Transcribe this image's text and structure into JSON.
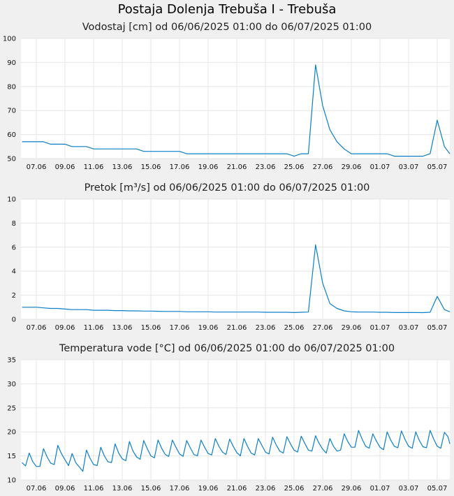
{
  "page": {
    "title": "Postaja Dolenja Trebuša I - Trebuša"
  },
  "chart_data": [
    {
      "type": "line",
      "title": "Vodostaj [cm] od 06/06/2025 01:00 do 06/07/2025 01:00",
      "xlabel": "",
      "ylabel": "",
      "x_tick_labels": [
        "07.06",
        "09.06",
        "11.06",
        "13.06",
        "15.06",
        "17.06",
        "19.06",
        "21.06",
        "23.06",
        "25.06",
        "27.06",
        "29.06",
        "01.07",
        "03.07",
        "05.07"
      ],
      "y_ticks": [
        50,
        60,
        70,
        80,
        90,
        100
      ],
      "ylim": [
        50,
        100
      ],
      "grid": true,
      "color": "#0a7fc9",
      "series": [
        {
          "x_days": [
            0,
            0.5,
            1,
            1.5,
            2,
            2.5,
            3,
            3.5,
            4,
            4.5,
            5,
            5.5,
            6,
            6.5,
            7,
            7.5,
            8,
            8.5,
            9,
            9.5,
            10,
            10.5,
            11,
            11.5,
            12,
            12.5,
            13,
            13.5,
            14,
            14.5,
            15,
            15.5,
            16,
            16.5,
            17,
            17.5,
            18,
            18.5,
            19,
            19.5,
            20,
            20.5,
            21,
            21.5,
            22,
            22.5,
            23,
            23.5,
            24,
            24.5,
            25,
            25.5,
            26,
            26.5,
            27,
            27.5,
            28,
            28.5,
            29,
            29.5,
            30
          ],
          "values": [
            57,
            57,
            57,
            57,
            56,
            56,
            56,
            55,
            55,
            55,
            54,
            54,
            54,
            54,
            54,
            54,
            54,
            53,
            53,
            53,
            53,
            53,
            53,
            52,
            52,
            52,
            52,
            52,
            52,
            52,
            52,
            52,
            52,
            52,
            52,
            52,
            52,
            52,
            51,
            52,
            52,
            89,
            72,
            62,
            57,
            54,
            52,
            52,
            52,
            52,
            52,
            52,
            51,
            51,
            51,
            51,
            51,
            52,
            66,
            55,
            52
          ]
        }
      ]
    },
    {
      "type": "line",
      "title": "Pretok [m³/s] od 06/06/2025 01:00 do 06/07/2025 01:00",
      "xlabel": "",
      "ylabel": "",
      "x_tick_labels": [
        "07.06",
        "09.06",
        "11.06",
        "13.06",
        "15.06",
        "17.06",
        "19.06",
        "21.06",
        "23.06",
        "25.06",
        "27.06",
        "29.06",
        "01.07",
        "03.07",
        "05.07"
      ],
      "y_ticks": [
        0,
        2,
        4,
        6,
        8,
        10
      ],
      "ylim": [
        0,
        10
      ],
      "grid": true,
      "color": "#0a7fc9",
      "series": [
        {
          "x_days": [
            0,
            0.5,
            1,
            1.5,
            2,
            2.5,
            3,
            3.5,
            4,
            4.5,
            5,
            5.5,
            6,
            6.5,
            7,
            7.5,
            8,
            8.5,
            9,
            9.5,
            10,
            10.5,
            11,
            11.5,
            12,
            12.5,
            13,
            13.5,
            14,
            14.5,
            15,
            15.5,
            16,
            16.5,
            17,
            17.5,
            18,
            18.5,
            19,
            19.5,
            20,
            20.5,
            21,
            21.5,
            22,
            22.5,
            23,
            23.5,
            24,
            24.5,
            25,
            25.5,
            26,
            26.5,
            27,
            27.5,
            28,
            28.5,
            29,
            29.5,
            30
          ],
          "values": [
            1.0,
            1.0,
            1.0,
            0.95,
            0.9,
            0.9,
            0.85,
            0.8,
            0.8,
            0.8,
            0.75,
            0.75,
            0.75,
            0.72,
            0.72,
            0.7,
            0.7,
            0.68,
            0.68,
            0.66,
            0.65,
            0.65,
            0.65,
            0.62,
            0.62,
            0.62,
            0.62,
            0.6,
            0.6,
            0.6,
            0.6,
            0.6,
            0.6,
            0.6,
            0.58,
            0.58,
            0.58,
            0.58,
            0.56,
            0.58,
            0.6,
            6.2,
            3.0,
            1.3,
            0.9,
            0.7,
            0.62,
            0.6,
            0.6,
            0.6,
            0.58,
            0.58,
            0.56,
            0.56,
            0.56,
            0.56,
            0.55,
            0.58,
            1.9,
            0.8,
            0.62
          ]
        }
      ]
    },
    {
      "type": "line",
      "title": "Temperatura vode [°C] od 06/06/2025 01:00 do 06/07/2025 01:00",
      "xlabel": "",
      "ylabel": "",
      "x_tick_labels": [
        "07.06",
        "09.06",
        "11.06",
        "13.06",
        "15.06",
        "17.06",
        "19.06",
        "21.06",
        "23.06",
        "25.06",
        "27.06",
        "29.06",
        "01.07",
        "03.07",
        "05.07"
      ],
      "y_ticks": [
        10,
        15,
        20,
        25,
        30,
        35
      ],
      "ylim": [
        10,
        35
      ],
      "grid": true,
      "color": "#0a7fc9",
      "series": [
        {
          "x_days": [
            0,
            0.25,
            0.5,
            0.75,
            1,
            1.25,
            1.5,
            1.75,
            2,
            2.25,
            2.5,
            2.75,
            3,
            3.25,
            3.5,
            3.75,
            4,
            4.25,
            4.5,
            4.75,
            5,
            5.25,
            5.5,
            5.75,
            6,
            6.25,
            6.5,
            6.75,
            7,
            7.25,
            7.5,
            7.75,
            8,
            8.25,
            8.5,
            8.75,
            9,
            9.25,
            9.5,
            9.75,
            10,
            10.25,
            10.5,
            10.75,
            11,
            11.25,
            11.5,
            11.75,
            12,
            12.25,
            12.5,
            12.75,
            13,
            13.25,
            13.5,
            13.75,
            14,
            14.25,
            14.5,
            14.75,
            15,
            15.25,
            15.5,
            15.75,
            16,
            16.25,
            16.5,
            16.75,
            17,
            17.25,
            17.5,
            17.75,
            18,
            18.25,
            18.5,
            18.75,
            19,
            19.25,
            19.5,
            19.75,
            20,
            20.25,
            20.5,
            20.75,
            21,
            21.25,
            21.5,
            21.75,
            22,
            22.25,
            22.5,
            22.75,
            23,
            23.25,
            23.5,
            23.75,
            24,
            24.25,
            24.5,
            24.75,
            25,
            25.25,
            25.5,
            25.75,
            26,
            26.25,
            26.5,
            26.75,
            27,
            27.25,
            27.5,
            27.75,
            28,
            28.25,
            28.5,
            28.75,
            29,
            29.25,
            29.5,
            29.75,
            30
          ],
          "values": [
            13.6,
            12.9,
            15.6,
            13.8,
            12.8,
            12.8,
            16.5,
            14.8,
            13.5,
            13.2,
            17.2,
            15.5,
            14.2,
            13.0,
            15.5,
            13.6,
            12.7,
            11.8,
            16.2,
            14.5,
            13.2,
            13.0,
            16.8,
            15.0,
            13.8,
            13.6,
            17.5,
            15.6,
            14.4,
            14.0,
            18.0,
            16.0,
            14.8,
            14.3,
            18.2,
            16.5,
            15.0,
            14.6,
            18.3,
            16.6,
            15.3,
            14.9,
            18.3,
            16.8,
            15.4,
            14.9,
            18.2,
            16.7,
            15.3,
            15.0,
            18.3,
            16.8,
            15.5,
            15.2,
            18.6,
            17.0,
            15.8,
            15.3,
            18.5,
            17.0,
            15.7,
            15.0,
            18.6,
            17.0,
            15.6,
            15.2,
            18.6,
            17.2,
            15.8,
            15.4,
            18.9,
            17.3,
            16.0,
            15.6,
            19.0,
            17.5,
            16.2,
            15.8,
            19.1,
            17.6,
            16.2,
            16.0,
            19.2,
            17.6,
            16.4,
            15.6,
            18.6,
            17.0,
            16.0,
            16.2,
            19.6,
            18.0,
            16.8,
            16.8,
            20.3,
            18.5,
            17.0,
            16.6,
            19.6,
            18.1,
            16.8,
            16.3,
            20.0,
            18.3,
            17.0,
            16.7,
            20.2,
            18.4,
            17.0,
            16.6,
            20.0,
            18.2,
            16.9,
            16.7,
            20.3,
            18.5,
            17.0,
            16.6,
            19.9,
            19.0,
            17.5
          ]
        }
      ]
    }
  ]
}
